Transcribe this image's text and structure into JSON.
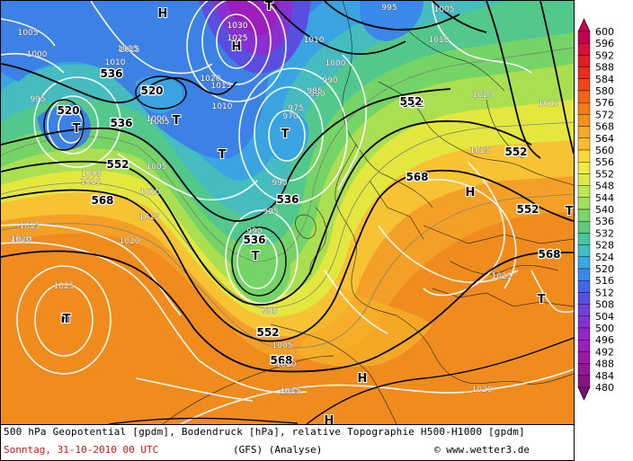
{
  "map": {
    "geopotential_labels": [
      "520",
      "536",
      "552",
      "568",
      "536",
      "520",
      "536",
      "552",
      "568",
      "552",
      "552",
      "568",
      "552",
      "536",
      "552",
      "568"
    ],
    "pressure_labels": [
      "1030",
      "1025",
      "1010",
      "995",
      "1005",
      "1000",
      "1010",
      "1015",
      "1005",
      "1000",
      "990",
      "995",
      "1020",
      "1015",
      "1010",
      "1000",
      "990",
      "985",
      "975",
      "970",
      "990",
      "995",
      "1005",
      "1010",
      "1015",
      "1020",
      "990",
      "995",
      "1005",
      "1010",
      "1015",
      "1020",
      "1025",
      "1025",
      "1020",
      "1015",
      "1010",
      "1005",
      "1015",
      "1010",
      "1015",
      "1005",
      "1010",
      "1015",
      "1020",
      "1025"
    ],
    "high_symbols": [
      "H",
      "H",
      "H",
      "H",
      "H",
      "H"
    ],
    "low_symbols": [
      "T",
      "T",
      "T",
      "T",
      "T",
      "T",
      "T",
      "T",
      "T"
    ]
  },
  "scale": {
    "values": [
      "600",
      "596",
      "592",
      "588",
      "584",
      "580",
      "576",
      "572",
      "568",
      "564",
      "560",
      "556",
      "552",
      "548",
      "544",
      "540",
      "536",
      "532",
      "528",
      "524",
      "520",
      "516",
      "512",
      "508",
      "504",
      "500",
      "496",
      "492",
      "488",
      "484",
      "480"
    ],
    "colors": [
      "#c40050",
      "#d41038",
      "#e01e24",
      "#e8301c",
      "#ee4818",
      "#f06418",
      "#f27c18",
      "#f49020",
      "#f6a828",
      "#f8c030",
      "#fad838",
      "#f2e640",
      "#dcea48",
      "#bee650",
      "#a0e05a",
      "#7cd664",
      "#5ccc78",
      "#4cc4a0",
      "#42bcc8",
      "#3aa8e0",
      "#3a88e8",
      "#4068e8",
      "#5850e0",
      "#7040d8",
      "#8432d0",
      "#9228c8",
      "#9c1ebc",
      "#9c1aa8",
      "#941894",
      "#861480",
      "#74106c"
    ]
  },
  "footer": {
    "line1": "500 hPa Geopotential [gpdm], Bodendruck [hPa], relative Topographie H500-H1000 [gpdm]",
    "date": "Sonntag, 31-10-2010  00 UTC",
    "model": "(GFS)  (Analyse)",
    "credit": "© www.wetter3.de"
  }
}
